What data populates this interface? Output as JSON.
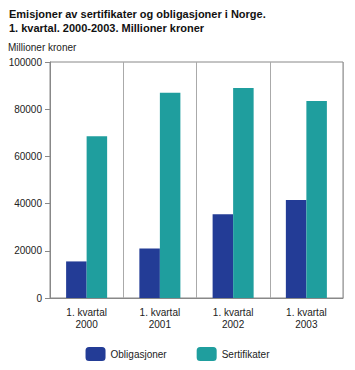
{
  "chart_data": {
    "type": "bar",
    "title": "Emisjoner av sertifikater og obligasjoner i Norge.\n1. kvartal. 2000-2003. Millioner kroner",
    "y_label": "Millioner kroner",
    "categories": [
      "1. kvartal\n2000",
      "1. kvartal\n2001",
      "1. kvartal\n2002",
      "1. kvartal\n2003"
    ],
    "series": [
      {
        "name": "Obligasjoner",
        "color": "#233c96",
        "values": [
          15500,
          21000,
          35500,
          41500
        ]
      },
      {
        "name": "Sertifikater",
        "color": "#1f9e9e",
        "values": [
          68500,
          87000,
          89000,
          83500
        ]
      }
    ],
    "ylim": [
      0,
      100000
    ],
    "yticks": [
      0,
      20000,
      40000,
      60000,
      80000,
      100000
    ],
    "grid": true,
    "legend": "bottom"
  }
}
